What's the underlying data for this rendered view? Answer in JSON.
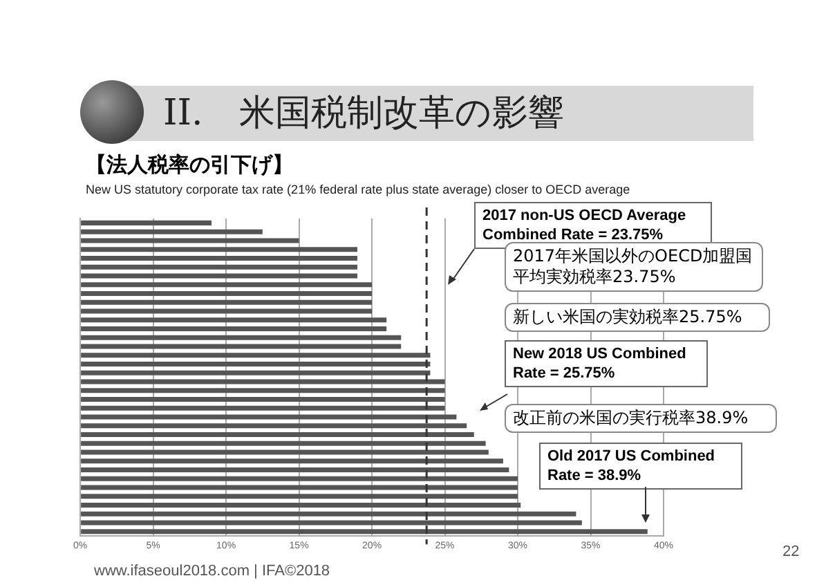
{
  "chart_data": {
    "type": "bar",
    "orientation": "horizontal",
    "title": "II.　米国税制改革の影響",
    "subtitle": "【法人税率の引下げ】",
    "xlabel": "New US statutory corporate tax rate (21% federal rate plus state average) closer to OECD average",
    "categories": [
      null,
      null,
      null,
      null,
      null,
      null,
      null,
      null,
      null,
      null,
      null,
      null,
      null,
      null,
      null,
      null,
      null,
      null,
      null,
      null,
      null,
      null,
      null,
      null,
      null,
      null,
      null,
      null,
      null,
      null,
      null,
      null,
      null,
      null,
      null,
      null
    ],
    "values": [
      9,
      12.5,
      15,
      19,
      19,
      19,
      19,
      20,
      20,
      20,
      20,
      21,
      21,
      22,
      22,
      24,
      24,
      24,
      25,
      25,
      25,
      25,
      25.8,
      26.5,
      27,
      27.8,
      28,
      29,
      29.4,
      30,
      30,
      30,
      30.2,
      34,
      34.4,
      38.9
    ],
    "color": "#555555",
    "xlim": [
      0,
      40
    ],
    "xticks": [
      {
        "value": 0,
        "label": "0%"
      },
      {
        "value": 5,
        "label": "5%"
      },
      {
        "value": 10,
        "label": "10%"
      },
      {
        "value": 15,
        "label": "15%"
      },
      {
        "value": 20,
        "label": "20%"
      },
      {
        "value": 25,
        "label": "25%"
      },
      {
        "value": 30,
        "label": "30%"
      },
      {
        "value": 35,
        "label": "35%"
      },
      {
        "value": 40,
        "label": "40%"
      }
    ],
    "grid": "x",
    "tick_labels": "x",
    "legend": false,
    "ref_lines": [
      {
        "axis": "x",
        "value": 23.75,
        "color": "#333333",
        "line_style": "dashed"
      }
    ],
    "annotations": [
      "2017 non-US OECD Average Combined Rate = 23.75%",
      "2017年米国以外のOECD加盟国平均実効税率23.75%",
      "新しい米国の実効税率25.75%",
      "New 2018 US Combined Rate = 25.75%",
      "改正前の米国の実行税率38.9%",
      "Old 2017 US Combined Rate = 38.9%",
      "www.ifaseoul2018.com | IFA©2018",
      "22"
    ]
  }
}
